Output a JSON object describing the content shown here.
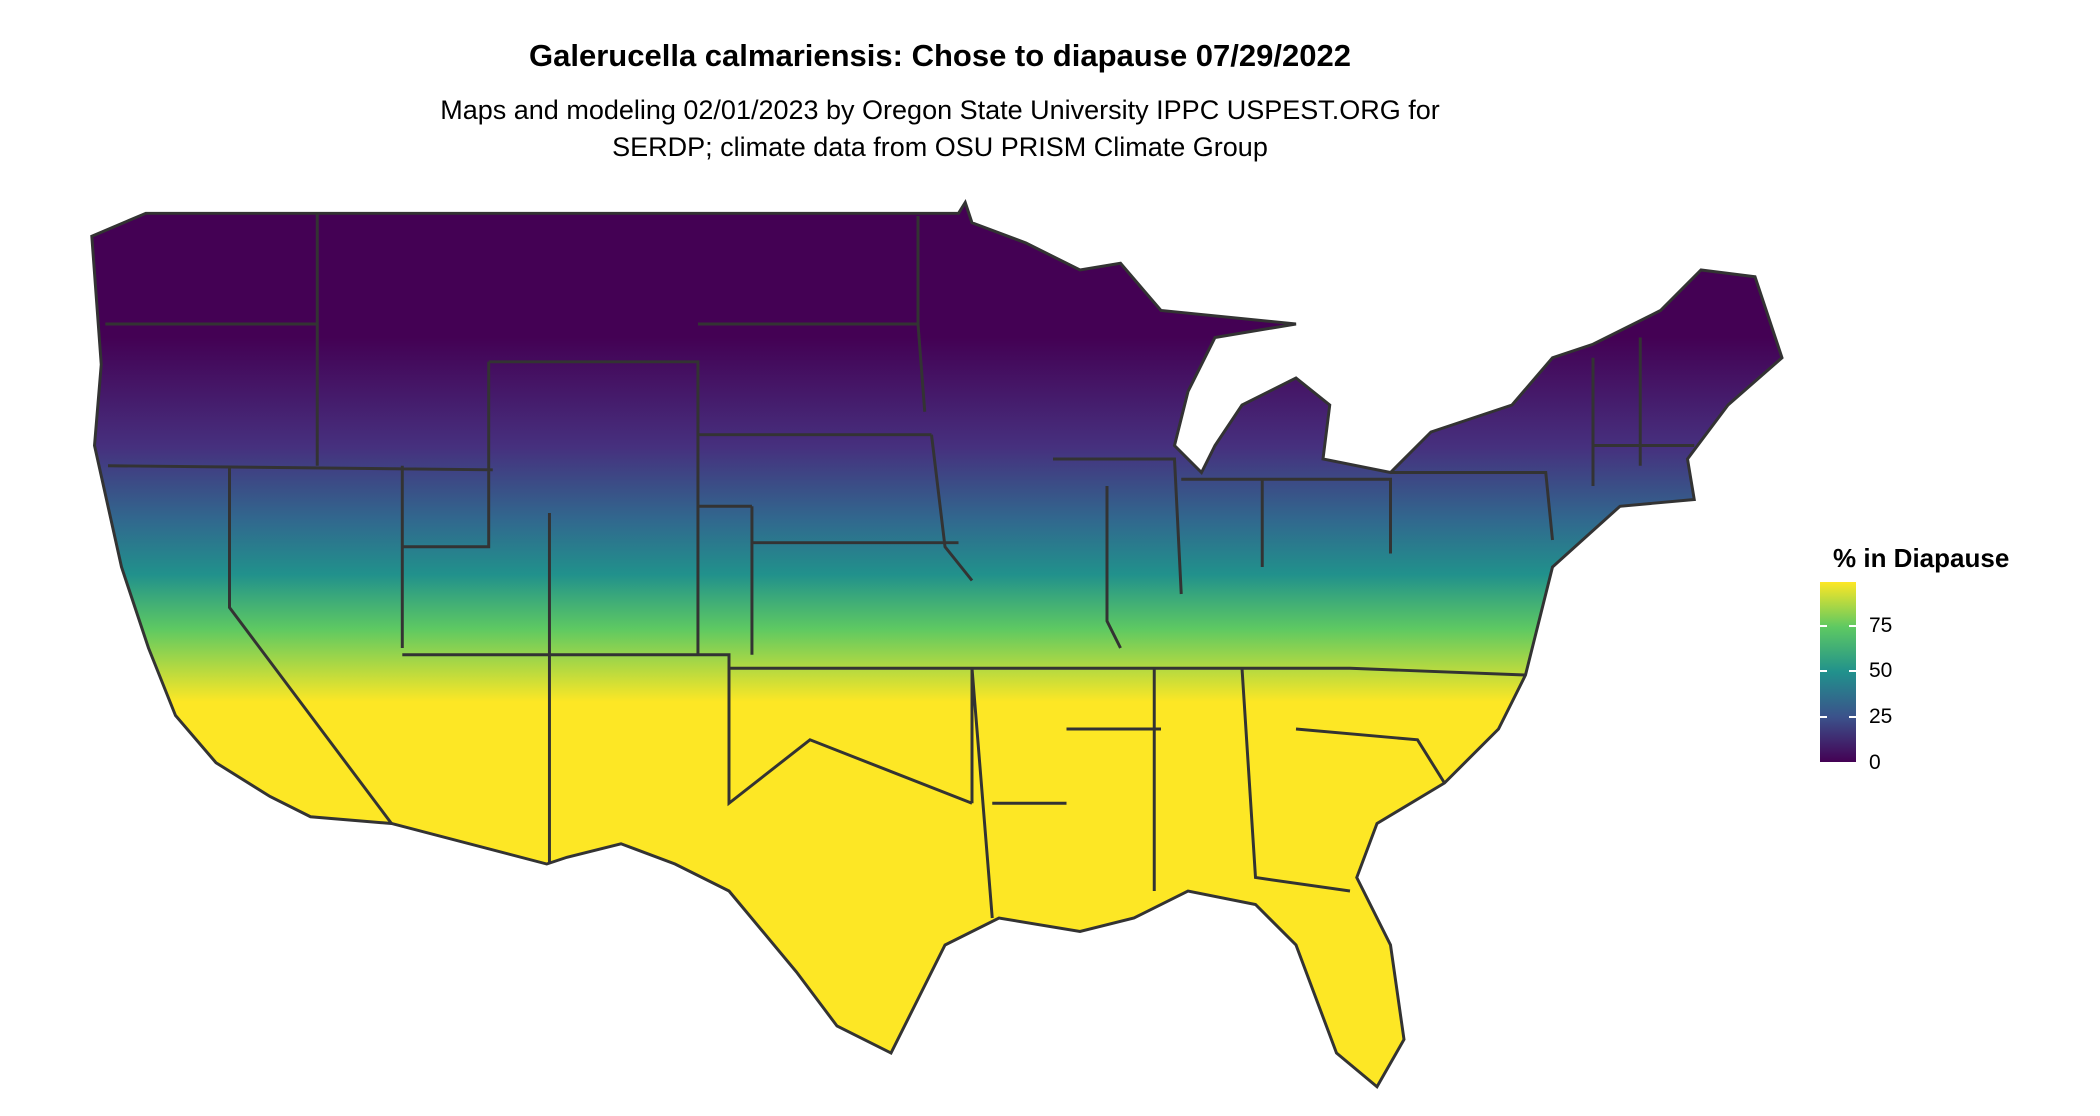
{
  "chart_data": {
    "type": "heatmap",
    "title": "Galerucella calmariensis: Chose to diapause 07/29/2022",
    "subtitle": [
      "Maps and modeling 02/01/2023 by Oregon State University IPPC USPEST.ORG for",
      "SERDP; climate data from OSU PRISM Climate Group"
    ],
    "region": "Contiguous United States with state boundaries",
    "legend": {
      "title": "% in Diapause",
      "placement": "right",
      "ticks": [
        "0",
        "25",
        "50",
        "75"
      ],
      "range": [
        0,
        100
      ],
      "colors": [
        "#440154",
        "#3b528b",
        "#21918c",
        "#5ec962",
        "#fde725"
      ]
    },
    "pattern": "low (0%) across northern states; transition band through central latitudes; high (~100%) across southern states"
  },
  "style": {
    "border_color": "#333333"
  }
}
